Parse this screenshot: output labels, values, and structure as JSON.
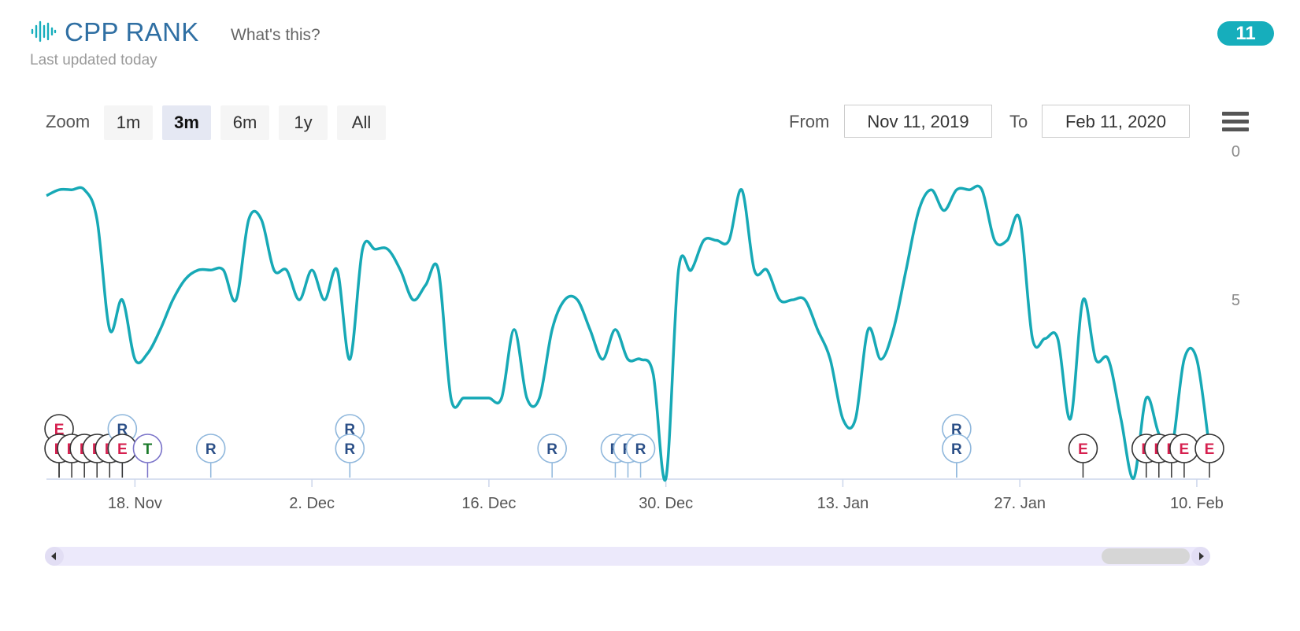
{
  "header": {
    "title": "CPP RANK",
    "whats_this": "What's this?",
    "updated": "Last updated today",
    "badge": "11"
  },
  "toolbar": {
    "zoom_label": "Zoom",
    "zoom_options": [
      "1m",
      "3m",
      "6m",
      "1y",
      "All"
    ],
    "zoom_active": "3m",
    "from_label": "From",
    "from_value": "Nov 11, 2019",
    "to_label": "To",
    "to_value": "Feb 11, 2020"
  },
  "colors": {
    "accent": "#16aebc",
    "line": "#17a9b6",
    "flag_E": "#d6204f",
    "flag_R": "#2b4f87",
    "flag_T": "#1a7a2a"
  },
  "chart_data": {
    "type": "line",
    "y_axis": {
      "min": 0,
      "max": 11,
      "reversed": true,
      "ticks": [
        "0",
        "5"
      ],
      "position": "right"
    },
    "x_axis": {
      "range": [
        "2019-11-11",
        "2020-02-11"
      ],
      "ticks": [
        "18. Nov",
        "2. Dec",
        "16. Dec",
        "30. Dec",
        "13. Jan",
        "27. Jan",
        "10. Feb"
      ]
    },
    "series": [
      {
        "points": [
          [
            "2019-11-11",
            1.5
          ],
          [
            "2019-11-12",
            1.3
          ],
          [
            "2019-11-13",
            1.3
          ],
          [
            "2019-11-14",
            1.3
          ],
          [
            "2019-11-15",
            2.3
          ],
          [
            "2019-11-16",
            6.0
          ],
          [
            "2019-11-17",
            5.0
          ],
          [
            "2019-11-18",
            7.0
          ],
          [
            "2019-11-19",
            6.8
          ],
          [
            "2019-11-20",
            6.0
          ],
          [
            "2019-11-21",
            5.0
          ],
          [
            "2019-11-22",
            4.3
          ],
          [
            "2019-11-23",
            4.0
          ],
          [
            "2019-11-24",
            4.0
          ],
          [
            "2019-11-25",
            4.0
          ],
          [
            "2019-11-26",
            5.0
          ],
          [
            "2019-11-27",
            2.3
          ],
          [
            "2019-11-28",
            2.3
          ],
          [
            "2019-11-29",
            4.0
          ],
          [
            "2019-11-30",
            4.0
          ],
          [
            "2019-12-01",
            5.0
          ],
          [
            "2019-12-02",
            4.0
          ],
          [
            "2019-12-03",
            5.0
          ],
          [
            "2019-12-04",
            4.0
          ],
          [
            "2019-12-05",
            7.0
          ],
          [
            "2019-12-06",
            3.3
          ],
          [
            "2019-12-07",
            3.3
          ],
          [
            "2019-12-08",
            3.3
          ],
          [
            "2019-12-09",
            4.0
          ],
          [
            "2019-12-10",
            5.0
          ],
          [
            "2019-12-11",
            4.5
          ],
          [
            "2019-12-12",
            4.0
          ],
          [
            "2019-12-13",
            8.3
          ],
          [
            "2019-12-14",
            8.3
          ],
          [
            "2019-12-15",
            8.3
          ],
          [
            "2019-12-16",
            8.3
          ],
          [
            "2019-12-17",
            8.3
          ],
          [
            "2019-12-18",
            6.0
          ],
          [
            "2019-12-19",
            8.3
          ],
          [
            "2019-12-20",
            8.3
          ],
          [
            "2019-12-21",
            6.0
          ],
          [
            "2019-12-22",
            5.0
          ],
          [
            "2019-12-23",
            5.0
          ],
          [
            "2019-12-24",
            6.0
          ],
          [
            "2019-12-25",
            7.0
          ],
          [
            "2019-12-26",
            6.0
          ],
          [
            "2019-12-27",
            7.0
          ],
          [
            "2019-12-28",
            7.0
          ],
          [
            "2019-12-29",
            7.5
          ],
          [
            "2019-12-30",
            11.0
          ],
          [
            "2019-12-31",
            4.0
          ],
          [
            "2020-01-01",
            4.0
          ],
          [
            "2020-01-02",
            3.0
          ],
          [
            "2020-01-03",
            3.0
          ],
          [
            "2020-01-04",
            3.0
          ],
          [
            "2020-01-05",
            1.3
          ],
          [
            "2020-01-06",
            4.0
          ],
          [
            "2020-01-07",
            4.0
          ],
          [
            "2020-01-08",
            5.0
          ],
          [
            "2020-01-09",
            5.0
          ],
          [
            "2020-01-10",
            5.0
          ],
          [
            "2020-01-11",
            6.0
          ],
          [
            "2020-01-12",
            7.0
          ],
          [
            "2020-01-13",
            9.0
          ],
          [
            "2020-01-14",
            9.0
          ],
          [
            "2020-01-15",
            6.0
          ],
          [
            "2020-01-16",
            7.0
          ],
          [
            "2020-01-17",
            6.0
          ],
          [
            "2020-01-18",
            4.0
          ],
          [
            "2020-01-19",
            2.0
          ],
          [
            "2020-01-20",
            1.3
          ],
          [
            "2020-01-21",
            2.0
          ],
          [
            "2020-01-22",
            1.3
          ],
          [
            "2020-01-23",
            1.3
          ],
          [
            "2020-01-24",
            1.3
          ],
          [
            "2020-01-25",
            3.0
          ],
          [
            "2020-01-26",
            3.0
          ],
          [
            "2020-01-27",
            2.3
          ],
          [
            "2020-01-28",
            6.3
          ],
          [
            "2020-01-29",
            6.3
          ],
          [
            "2020-01-30",
            6.3
          ],
          [
            "2020-01-31",
            9.0
          ],
          [
            "2020-02-01",
            5.0
          ],
          [
            "2020-02-02",
            7.0
          ],
          [
            "2020-02-03",
            7.0
          ],
          [
            "2020-02-04",
            9.0
          ],
          [
            "2020-02-05",
            11.0
          ],
          [
            "2020-02-06",
            8.3
          ],
          [
            "2020-02-07",
            9.5
          ],
          [
            "2020-02-08",
            10.0
          ],
          [
            "2020-02-09",
            7.0
          ],
          [
            "2020-02-10",
            7.0
          ],
          [
            "2020-02-11",
            10.0
          ]
        ]
      }
    ],
    "flags": [
      {
        "label": "E",
        "date": "2019-11-12",
        "stack": 1
      },
      {
        "label": "E",
        "date": "2019-11-12",
        "stack": 0
      },
      {
        "label": "E",
        "date": "2019-11-13",
        "stack": 0
      },
      {
        "label": "E",
        "date": "2019-11-14",
        "stack": 0
      },
      {
        "label": "E",
        "date": "2019-11-15",
        "stack": 0
      },
      {
        "label": "E",
        "date": "2019-11-16",
        "stack": 0
      },
      {
        "label": "R",
        "date": "2019-11-17",
        "stack": 1
      },
      {
        "label": "R",
        "date": "2019-11-17",
        "stack": 0
      },
      {
        "label": "E",
        "date": "2019-11-17",
        "stack": 0
      },
      {
        "label": "T",
        "date": "2019-11-19",
        "stack": 0
      },
      {
        "label": "R",
        "date": "2019-11-24",
        "stack": 0
      },
      {
        "label": "R",
        "date": "2019-12-05",
        "stack": 1
      },
      {
        "label": "R",
        "date": "2019-12-05",
        "stack": 0
      },
      {
        "label": "R",
        "date": "2019-12-21",
        "stack": 0
      },
      {
        "label": "R",
        "date": "2019-12-26",
        "stack": 0
      },
      {
        "label": "R",
        "date": "2019-12-27",
        "stack": 0
      },
      {
        "label": "R",
        "date": "2019-12-28",
        "stack": 0
      },
      {
        "label": "R",
        "date": "2020-01-22",
        "stack": 1
      },
      {
        "label": "R",
        "date": "2020-01-22",
        "stack": 0
      },
      {
        "label": "E",
        "date": "2020-02-01",
        "stack": 0
      },
      {
        "label": "E",
        "date": "2020-02-06",
        "stack": 0
      },
      {
        "label": "E",
        "date": "2020-02-07",
        "stack": 0
      },
      {
        "label": "E",
        "date": "2020-02-08",
        "stack": 0
      },
      {
        "label": "E",
        "date": "2020-02-09",
        "stack": 0
      },
      {
        "label": "E",
        "date": "2020-02-11",
        "stack": 0
      }
    ]
  }
}
